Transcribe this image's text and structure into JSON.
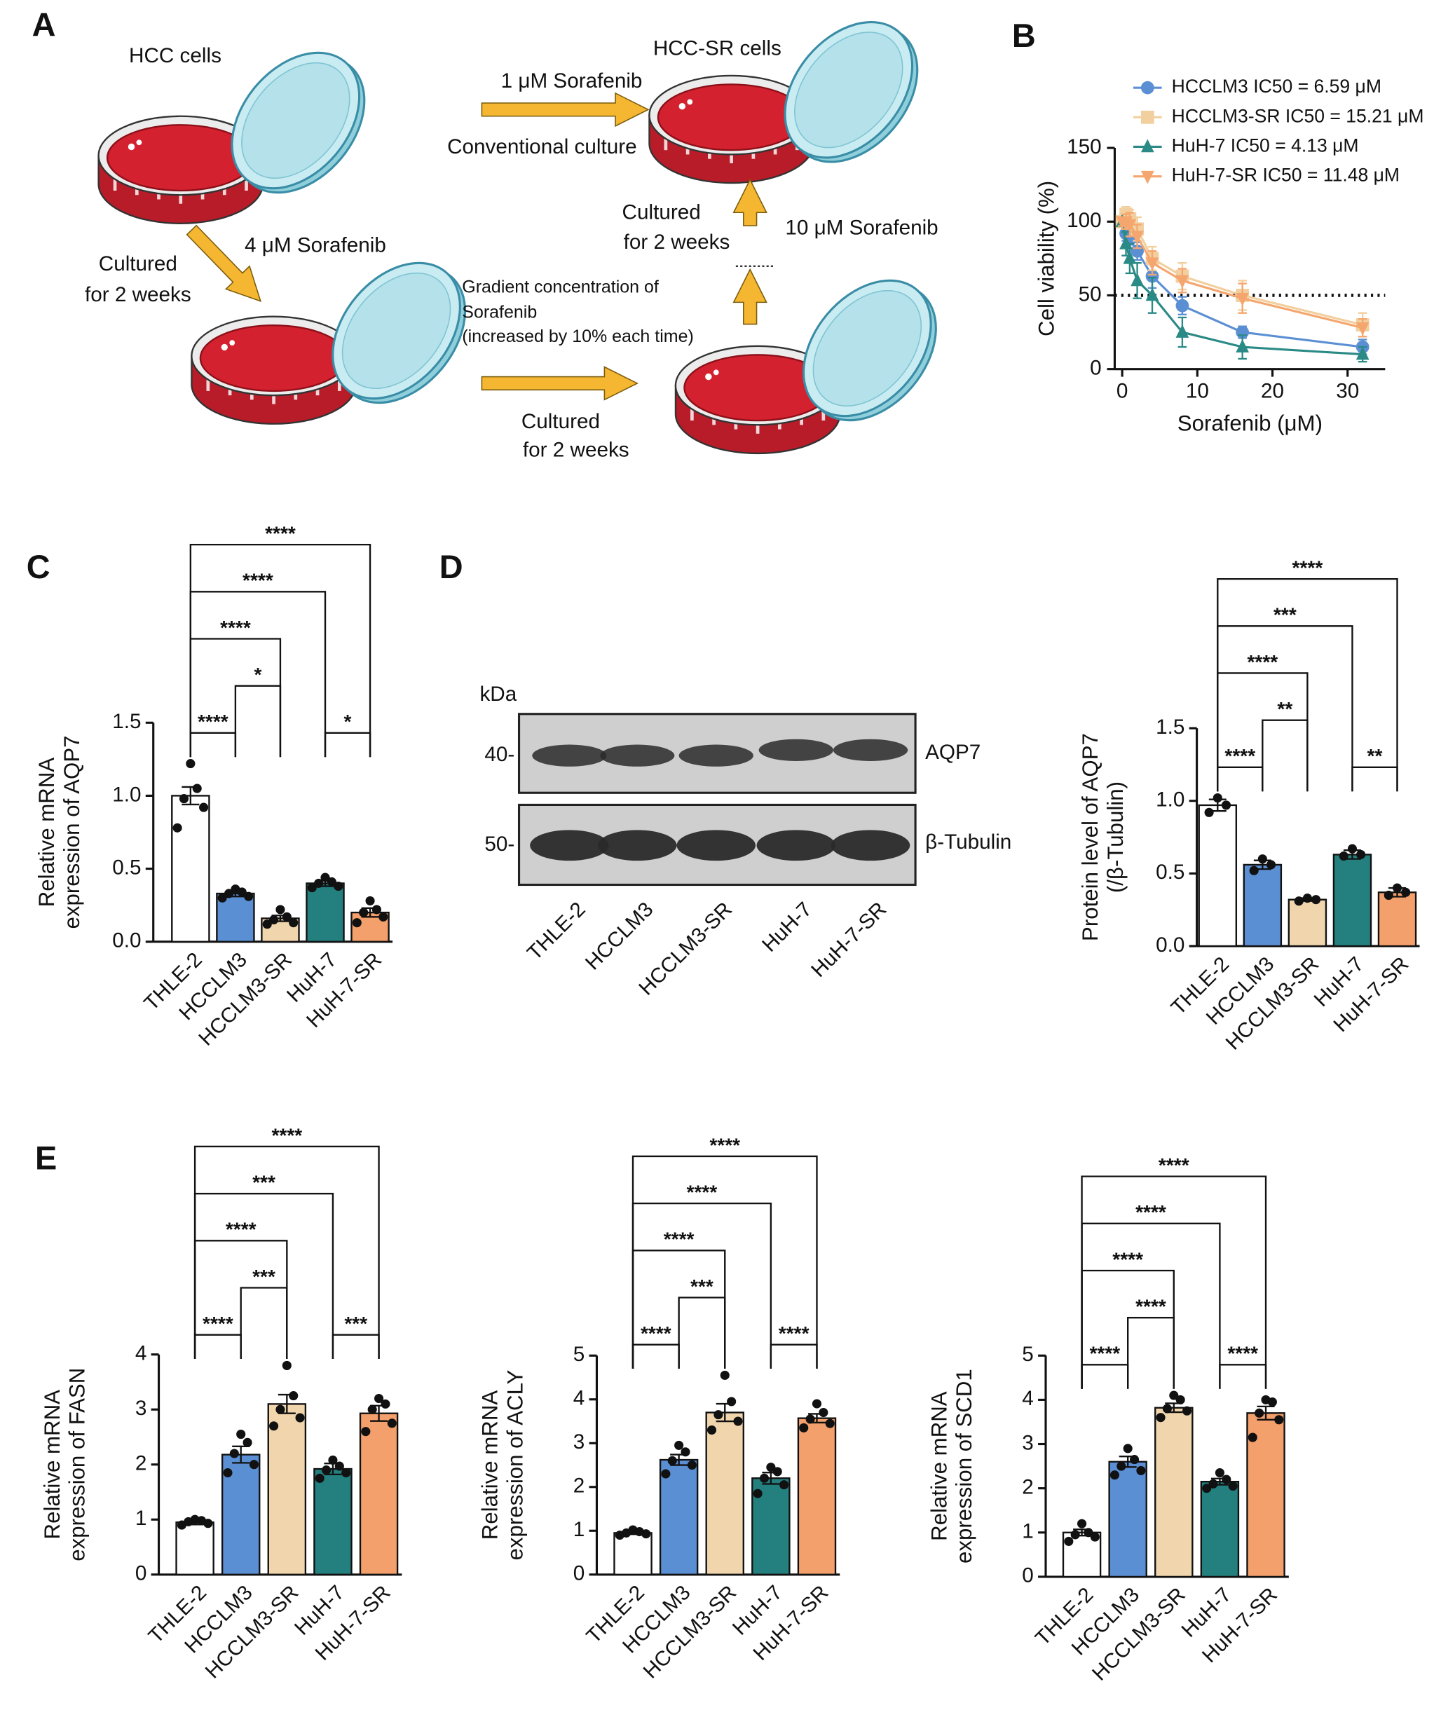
{
  "panels": [
    "A",
    "B",
    "C",
    "D",
    "E"
  ],
  "diagram": {
    "hcc_cells": "HCC cells",
    "hcc_sr_cells": "HCC-SR cells",
    "step1_dose": "4 μM Sorafenib",
    "step1_time": [
      "Cultured",
      "for 2 weeks"
    ],
    "step2_dose": [
      "Gradient concentration of",
      "Sorafenib",
      "(increased by 10% each time)"
    ],
    "step2_time": [
      "Cultured",
      "for 2 weeks"
    ],
    "step3_time": [
      "Cultured",
      "for 2 weeks"
    ],
    "step3_dose": "10 μM Sorafenib",
    "maintenance_dose": "1 μM Sorafenib",
    "maintenance_culture": "Conventional culture"
  },
  "blot": {
    "unit": "kDa",
    "markers": [
      "40-",
      "50-"
    ],
    "proteins": [
      "AQP7",
      "β-Tubulin"
    ],
    "lanes": [
      "THLE-2",
      "HCCLM3",
      "HCCLM3-SR",
      "HuH-7",
      "HuH-7-SR"
    ]
  },
  "chart_data": [
    {
      "type": "line",
      "x_label": "Sorafenib (μM)",
      "y_label": "Cell viability (%)",
      "x": [
        0,
        0.5,
        1,
        2,
        4,
        8,
        16,
        32
      ],
      "series": [
        {
          "name": "HCCLM3 IC50 = 6.59 μM",
          "color": "#5b8fd4",
          "marker": "circle",
          "values": [
            100,
            92,
            88,
            80,
            63,
            43,
            25,
            15
          ],
          "errors": [
            3,
            5,
            6,
            6,
            8,
            6,
            4,
            5
          ]
        },
        {
          "name": "HCCLM3-SR IC50 = 15.21 μM",
          "color": "#f2cf9e",
          "marker": "square",
          "values": [
            100,
            105,
            102,
            95,
            75,
            63,
            50,
            30
          ],
          "errors": [
            3,
            5,
            6,
            8,
            8,
            9,
            10,
            8
          ]
        },
        {
          "name": "HuH-7 IC50 = 4.13 μM",
          "color": "#2a8a86",
          "marker": "triangle-up",
          "values": [
            100,
            85,
            75,
            60,
            50,
            25,
            15,
            10
          ],
          "errors": [
            3,
            8,
            10,
            12,
            12,
            10,
            8,
            5
          ]
        },
        {
          "name": "HuH-7-SR IC50 = 11.48 μM",
          "color": "#f5a66e",
          "marker": "triangle-down",
          "values": [
            100,
            100,
            98,
            90,
            72,
            60,
            48,
            28
          ],
          "errors": [
            3,
            5,
            8,
            8,
            8,
            8,
            10,
            6
          ]
        }
      ],
      "xlim": [
        -1,
        35
      ],
      "xticks": [
        0,
        10,
        20,
        30
      ],
      "ylim": [
        0,
        150
      ],
      "yticks": [
        0,
        50,
        100,
        150
      ],
      "hline": 50
    },
    {
      "type": "bar",
      "y_label": [
        "Relative mRNA",
        "expression of AQP7"
      ],
      "categories": [
        "THLE-2",
        "HCCLM3",
        "HCCLM3-SR",
        "HuH-7",
        "HuH-7-SR"
      ],
      "colors": [
        "#ffffff",
        "#5b8fd4",
        "#f1d6ad",
        "#24807f",
        "#f4a06c"
      ],
      "values": [
        1.0,
        0.33,
        0.16,
        0.4,
        0.2
      ],
      "errors": [
        0.06,
        0.02,
        0.02,
        0.02,
        0.03
      ],
      "points": [
        [
          1.22,
          1.05,
          0.98,
          0.92,
          0.78
        ],
        [
          0.36,
          0.34,
          0.33,
          0.31,
          0.3
        ],
        [
          0.22,
          0.17,
          0.15,
          0.13,
          0.12
        ],
        [
          0.44,
          0.41,
          0.4,
          0.38,
          0.37
        ],
        [
          0.28,
          0.22,
          0.2,
          0.17,
          0.13
        ]
      ],
      "ylim": [
        0,
        1.5
      ],
      "yticks": [
        {
          "value": 0,
          "label": "0.0"
        },
        0.5,
        {
          "value": 1,
          "label": "1.0"
        },
        1.5
      ],
      "comparisons": [
        {
          "from": "THLE-2",
          "to": "HCCLM3",
          "label": "****"
        },
        {
          "from": "HCCLM3",
          "to": "HCCLM3-SR",
          "label": "*"
        },
        {
          "from": "HuH-7",
          "to": "HuH-7-SR",
          "label": "*"
        },
        {
          "from": "THLE-2",
          "to": "HCCLM3-SR",
          "label": "****"
        },
        {
          "from": "THLE-2",
          "to": "HuH-7",
          "label": "****"
        },
        {
          "from": "THLE-2",
          "to": "HuH-7-SR",
          "label": "****"
        }
      ]
    },
    {
      "type": "bar",
      "y_label": [
        "Protein level of AQP7",
        "(/β-Tubulin)"
      ],
      "categories": [
        "THLE-2",
        "HCCLM3",
        "HCCLM3-SR",
        "HuH-7",
        "HuH-7-SR"
      ],
      "colors": [
        "#ffffff",
        "#5b8fd4",
        "#f1d6ad",
        "#24807f",
        "#f4a06c"
      ],
      "values": [
        0.97,
        0.56,
        0.32,
        0.63,
        0.37
      ],
      "errors": [
        0.04,
        0.03,
        0.01,
        0.03,
        0.03
      ],
      "points": [
        [
          1.02,
          0.97,
          0.92
        ],
        [
          0.6,
          0.56,
          0.52
        ],
        [
          0.33,
          0.32,
          0.31
        ],
        [
          0.67,
          0.63,
          0.62
        ],
        [
          0.4,
          0.37,
          0.35
        ]
      ],
      "ylim": [
        0,
        1.5
      ],
      "yticks": [
        {
          "value": 0,
          "label": "0.0"
        },
        0.5,
        {
          "value": 1,
          "label": "1.0"
        },
        1.5
      ],
      "comparisons": [
        {
          "from": "THLE-2",
          "to": "HCCLM3",
          "label": "****"
        },
        {
          "from": "HuH-7",
          "to": "HuH-7-SR",
          "label": "**"
        },
        {
          "from": "HCCLM3",
          "to": "HCCLM3-SR",
          "label": "**"
        },
        {
          "from": "THLE-2",
          "to": "HCCLM3-SR",
          "label": "****"
        },
        {
          "from": "THLE-2",
          "to": "HuH-7",
          "label": "***"
        },
        {
          "from": "THLE-2",
          "to": "HuH-7-SR",
          "label": "****"
        }
      ]
    },
    {
      "type": "bar",
      "y_label": [
        "Relative mRNA",
        "expression of FASN"
      ],
      "categories": [
        "THLE-2",
        "HCCLM3",
        "HCCLM3-SR",
        "HuH-7",
        "HuH-7-SR"
      ],
      "colors": [
        "#ffffff",
        "#5b8fd4",
        "#f1d6ad",
        "#24807f",
        "#f4a06c"
      ],
      "values": [
        0.95,
        2.18,
        3.1,
        1.92,
        2.93
      ],
      "errors": [
        0.04,
        0.15,
        0.17,
        0.1,
        0.14
      ],
      "points": [
        [
          1.0,
          0.98,
          0.96,
          0.93,
          0.9
        ],
        [
          2.55,
          2.4,
          2.2,
          2.0,
          1.85
        ],
        [
          3.8,
          3.25,
          3.0,
          2.85,
          2.7
        ],
        [
          2.08,
          1.97,
          1.9,
          1.85,
          1.75
        ],
        [
          3.2,
          3.1,
          3.0,
          2.75,
          2.6
        ]
      ],
      "ylim": [
        0,
        4
      ],
      "yticks": [
        0,
        1,
        2,
        3,
        4
      ],
      "comparisons": [
        {
          "from": "THLE-2",
          "to": "HCCLM3",
          "label": "****"
        },
        {
          "from": "HCCLM3",
          "to": "HCCLM3-SR",
          "label": "***"
        },
        {
          "from": "HuH-7",
          "to": "HuH-7-SR",
          "label": "***"
        },
        {
          "from": "THLE-2",
          "to": "HCCLM3-SR",
          "label": "****"
        },
        {
          "from": "THLE-2",
          "to": "HuH-7",
          "label": "***"
        },
        {
          "from": "THLE-2",
          "to": "HuH-7-SR",
          "label": "****"
        }
      ]
    },
    {
      "type": "bar",
      "y_label": [
        "Relative mRNA",
        "expression of ACLY"
      ],
      "categories": [
        "THLE-2",
        "HCCLM3",
        "HCCLM3-SR",
        "HuH-7",
        "HuH-7-SR"
      ],
      "colors": [
        "#ffffff",
        "#5b8fd4",
        "#f1d6ad",
        "#24807f",
        "#f4a06c"
      ],
      "values": [
        0.95,
        2.62,
        3.7,
        2.2,
        3.57
      ],
      "errors": [
        0.03,
        0.12,
        0.2,
        0.13,
        0.1
      ],
      "points": [
        [
          1.02,
          0.98,
          0.95,
          0.93,
          0.9
        ],
        [
          2.95,
          2.8,
          2.6,
          2.5,
          2.3
        ],
        [
          4.55,
          3.95,
          3.65,
          3.5,
          3.3
        ],
        [
          2.45,
          2.35,
          2.2,
          2.05,
          1.85
        ],
        [
          3.9,
          3.7,
          3.55,
          3.45,
          3.35
        ]
      ],
      "ylim": [
        0,
        5
      ],
      "yticks": [
        0,
        1,
        2,
        3,
        4,
        5
      ],
      "comparisons": [
        {
          "from": "THLE-2",
          "to": "HCCLM3",
          "label": "****"
        },
        {
          "from": "HCCLM3",
          "to": "HCCLM3-SR",
          "label": "***"
        },
        {
          "from": "HuH-7",
          "to": "HuH-7-SR",
          "label": "****"
        },
        {
          "from": "THLE-2",
          "to": "HCCLM3-SR",
          "label": "****"
        },
        {
          "from": "THLE-2",
          "to": "HuH-7",
          "label": "****"
        },
        {
          "from": "THLE-2",
          "to": "HuH-7-SR",
          "label": "****"
        }
      ]
    },
    {
      "type": "bar",
      "y_label": [
        "Relative mRNA",
        "expression of SCD1"
      ],
      "categories": [
        "THLE-2",
        "HCCLM3",
        "HCCLM3-SR",
        "HuH-7",
        "HuH-7-SR"
      ],
      "colors": [
        "#ffffff",
        "#5b8fd4",
        "#f1d6ad",
        "#24807f",
        "#f4a06c"
      ],
      "values": [
        1.0,
        2.6,
        3.82,
        2.15,
        3.7
      ],
      "errors": [
        0.07,
        0.12,
        0.1,
        0.07,
        0.15
      ],
      "points": [
        [
          1.2,
          1.0,
          0.95,
          0.9,
          0.8
        ],
        [
          2.9,
          2.65,
          2.5,
          2.4,
          2.3
        ],
        [
          4.1,
          4.0,
          3.8,
          3.75,
          3.6
        ],
        [
          2.35,
          2.2,
          2.1,
          2.05,
          2.0
        ],
        [
          4.0,
          3.95,
          3.7,
          3.55,
          3.15
        ]
      ],
      "ylim": [
        0,
        5
      ],
      "yticks": [
        0,
        1,
        2,
        3,
        4,
        5
      ],
      "comparisons": [
        {
          "from": "THLE-2",
          "to": "HCCLM3",
          "label": "****"
        },
        {
          "from": "HCCLM3",
          "to": "HCCLM3-SR",
          "label": "****"
        },
        {
          "from": "HuH-7",
          "to": "HuH-7-SR",
          "label": "****"
        },
        {
          "from": "THLE-2",
          "to": "HCCLM3-SR",
          "label": "****"
        },
        {
          "from": "THLE-2",
          "to": "HuH-7",
          "label": "****"
        },
        {
          "from": "THLE-2",
          "to": "HuH-7-SR",
          "label": "****"
        }
      ]
    }
  ]
}
